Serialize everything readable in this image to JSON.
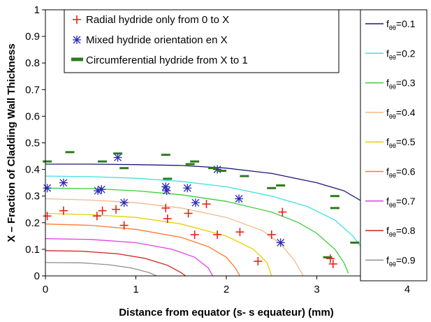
{
  "chart_data": {
    "type": "line",
    "title": "",
    "xlabel": "Distance from equator (s- s equateur) (mm)",
    "ylabel": "X – Fraction of Cladding Wall Thickness",
    "xlim": [
      0,
      4
    ],
    "ylim": [
      0,
      1
    ],
    "x_ticks": [
      "0",
      "1",
      "2",
      "3",
      "4"
    ],
    "y_ticks": [
      "0",
      "0.1",
      "0.2",
      "0.3",
      "0.4",
      "0.5",
      "0.6",
      "0.7",
      "0.8",
      "0.9",
      "1"
    ],
    "grid": false,
    "marker_legend_placement": "top-left",
    "line_legend_placement": "right",
    "colors": {
      "radial": "#e8201e",
      "mixed": "#2a2ab8",
      "circumferential": "#2f7a1e"
    },
    "marker_legend": [
      {
        "key": "radial",
        "label": "Radial hydride only from 0 to X",
        "marker": "plus"
      },
      {
        "key": "mixed",
        "label": "Mixed hydride orientation en X",
        "marker": "asterisk"
      },
      {
        "key": "circumferential",
        "label": "Circumferential hydride from X to 1",
        "marker": "dash"
      }
    ],
    "line_series": [
      {
        "label_main": "f",
        "label_sub": "θθ",
        "label_value": "=0.1",
        "color": "#1a1a78",
        "x": [
          0,
          0.5,
          1.0,
          1.5,
          2.0,
          2.5,
          3.0,
          3.3,
          3.5,
          3.7,
          3.85
        ],
        "y": [
          0.42,
          0.42,
          0.418,
          0.415,
          0.405,
          0.385,
          0.35,
          0.32,
          0.28,
          0.18,
          0.03
        ]
      },
      {
        "label_main": "f",
        "label_sub": "θθ",
        "label_value": "=0.2",
        "color": "#40e0e0",
        "x": [
          0,
          0.5,
          1.0,
          1.5,
          2.0,
          2.5,
          2.9,
          3.2,
          3.4,
          3.55,
          3.65
        ],
        "y": [
          0.375,
          0.373,
          0.367,
          0.355,
          0.335,
          0.3,
          0.26,
          0.21,
          0.15,
          0.08,
          0.0
        ]
      },
      {
        "label_main": "f",
        "label_sub": "θθ",
        "label_value": "=0.3",
        "color": "#3ccc3c",
        "x": [
          0,
          0.5,
          1.0,
          1.5,
          2.0,
          2.5,
          2.8,
          3.0,
          3.2,
          3.3,
          3.35
        ],
        "y": [
          0.33,
          0.328,
          0.32,
          0.305,
          0.28,
          0.24,
          0.2,
          0.16,
          0.1,
          0.05,
          0.01
        ]
      },
      {
        "label_main": "f",
        "label_sub": "θθ",
        "label_value": "=0.4",
        "color": "#f5b888",
        "x": [
          0,
          0.5,
          1.0,
          1.5,
          2.0,
          2.4,
          2.6,
          2.75,
          2.85
        ],
        "y": [
          0.29,
          0.285,
          0.275,
          0.255,
          0.22,
          0.17,
          0.12,
          0.06,
          0.0
        ]
      },
      {
        "label_main": "f",
        "label_sub": "θθ",
        "label_value": "=0.5",
        "color": "#e8d000",
        "x": [
          0,
          0.5,
          1.0,
          1.5,
          2.0,
          2.3,
          2.45,
          2.5
        ],
        "y": [
          0.235,
          0.23,
          0.22,
          0.195,
          0.15,
          0.1,
          0.05,
          0.0
        ]
      },
      {
        "label_main": "f",
        "label_sub": "θθ",
        "label_value": "=0.6",
        "color": "#ff7a30",
        "x": [
          0,
          0.5,
          1.0,
          1.5,
          1.8,
          2.0,
          2.1,
          2.15
        ],
        "y": [
          0.195,
          0.19,
          0.175,
          0.145,
          0.11,
          0.07,
          0.03,
          0.0
        ]
      },
      {
        "label_main": "f",
        "label_sub": "θθ",
        "label_value": "=0.7",
        "color": "#e040e0",
        "x": [
          0,
          0.5,
          1.0,
          1.4,
          1.65,
          1.8,
          1.85
        ],
        "y": [
          0.14,
          0.137,
          0.125,
          0.1,
          0.07,
          0.03,
          0.0
        ]
      },
      {
        "label_main": "f",
        "label_sub": "θθ",
        "label_value": "=0.8",
        "color": "#cc2020",
        "x": [
          0,
          0.4,
          0.8,
          1.1,
          1.35,
          1.5,
          1.55
        ],
        "y": [
          0.095,
          0.093,
          0.083,
          0.066,
          0.04,
          0.012,
          0.0
        ]
      },
      {
        "label_main": "f",
        "label_sub": "θθ",
        "label_value": "=0.9",
        "color": "#909090",
        "x": [
          0,
          0.4,
          0.7,
          0.95,
          1.15,
          1.23
        ],
        "y": [
          0.05,
          0.049,
          0.042,
          0.03,
          0.012,
          0.0
        ]
      }
    ],
    "scatter_series": [
      {
        "key": "radial",
        "marker": "plus",
        "points": [
          [
            0.02,
            0.225
          ],
          [
            0.2,
            0.245
          ],
          [
            0.57,
            0.225
          ],
          [
            0.63,
            0.245
          ],
          [
            0.78,
            0.25
          ],
          [
            0.87,
            0.19
          ],
          [
            1.33,
            0.255
          ],
          [
            1.35,
            0.215
          ],
          [
            1.58,
            0.235
          ],
          [
            1.65,
            0.155
          ],
          [
            1.78,
            0.27
          ],
          [
            1.9,
            0.155
          ],
          [
            2.15,
            0.165
          ],
          [
            2.35,
            0.055
          ],
          [
            2.5,
            0.155
          ],
          [
            2.62,
            0.24
          ],
          [
            3.15,
            0.065
          ],
          [
            3.18,
            0.045
          ]
        ]
      },
      {
        "key": "mixed",
        "marker": "asterisk",
        "points": [
          [
            0.02,
            0.33
          ],
          [
            0.2,
            0.35
          ],
          [
            0.58,
            0.32
          ],
          [
            0.62,
            0.325
          ],
          [
            0.8,
            0.445
          ],
          [
            0.87,
            0.275
          ],
          [
            1.33,
            0.335
          ],
          [
            1.34,
            0.32
          ],
          [
            1.57,
            0.33
          ],
          [
            1.66,
            0.275
          ],
          [
            1.9,
            0.4
          ],
          [
            2.14,
            0.29
          ],
          [
            2.6,
            0.125
          ]
        ]
      },
      {
        "key": "circumferential",
        "marker": "dash",
        "points": [
          [
            0.02,
            0.43
          ],
          [
            0.27,
            0.465
          ],
          [
            0.63,
            0.43
          ],
          [
            0.8,
            0.46
          ],
          [
            0.87,
            0.405
          ],
          [
            1.33,
            0.455
          ],
          [
            1.35,
            0.365
          ],
          [
            1.6,
            0.42
          ],
          [
            1.65,
            0.43
          ],
          [
            1.85,
            0.405
          ],
          [
            1.95,
            0.395
          ],
          [
            2.2,
            0.375
          ],
          [
            2.5,
            0.33
          ],
          [
            2.6,
            0.34
          ],
          [
            3.2,
            0.3
          ],
          [
            3.2,
            0.255
          ],
          [
            3.42,
            0.125
          ],
          [
            3.12,
            0.07
          ]
        ]
      }
    ]
  }
}
